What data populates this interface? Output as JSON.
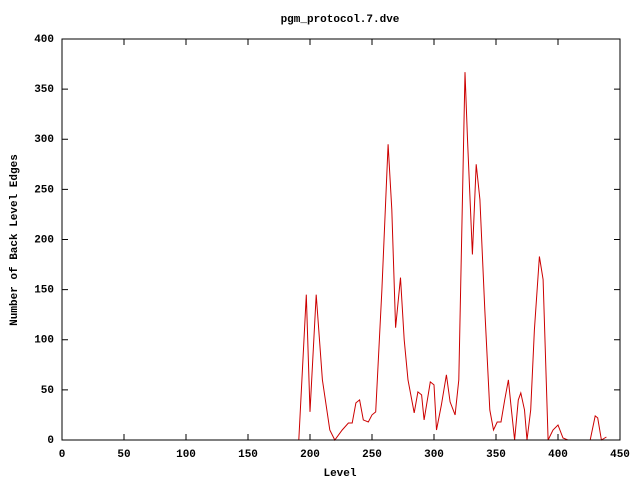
{
  "chart_data": {
    "type": "line",
    "title": "pgm_protocol.7.dve",
    "x_label": "Level",
    "y_label": "Number of Back Level Edges",
    "color": "#cc0000",
    "x": [
      0,
      188,
      191,
      197,
      200,
      205,
      210,
      216,
      220,
      226,
      231,
      234,
      237,
      240,
      243,
      247,
      250,
      253,
      258,
      263,
      266,
      269,
      273,
      276,
      279,
      284,
      287,
      290,
      292,
      297,
      300,
      302,
      306,
      310,
      313,
      317,
      320,
      325,
      327,
      331,
      334,
      337,
      341,
      345,
      348,
      351,
      354,
      357,
      360,
      362,
      365,
      368,
      370,
      373,
      375,
      378,
      381,
      385,
      388,
      392,
      396,
      400,
      404,
      408,
      426,
      430,
      432,
      435,
      439
    ],
    "values": [
      0,
      0,
      0,
      145,
      28,
      145,
      60,
      10,
      0,
      10,
      17,
      17,
      37,
      40,
      20,
      18,
      25,
      28,
      150,
      295,
      230,
      112,
      162,
      100,
      60,
      27,
      48,
      45,
      20,
      58,
      55,
      10,
      35,
      65,
      38,
      25,
      60,
      367,
      300,
      185,
      275,
      240,
      130,
      30,
      10,
      18,
      18,
      40,
      60,
      35,
      0,
      40,
      47,
      30,
      0,
      30,
      110,
      183,
      160,
      0,
      10,
      15,
      2,
      0,
      0,
      24,
      22,
      0,
      3
    ],
    "xlim": [
      0,
      450
    ],
    "xticks": [
      0,
      50,
      100,
      150,
      200,
      250,
      300,
      350,
      400,
      450
    ],
    "ylim": [
      0,
      400
    ],
    "yticks": [
      0,
      50,
      100,
      150,
      200,
      250,
      300,
      350,
      400
    ]
  }
}
